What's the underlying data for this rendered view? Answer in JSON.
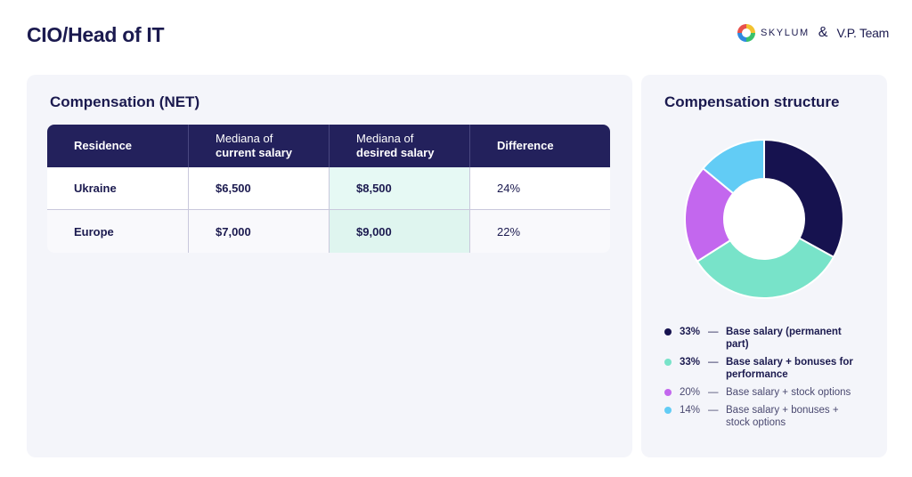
{
  "header": {
    "title": "CIO/Head of IT",
    "brand_skylum": "SKYLUM",
    "ampersand": "&",
    "brand_vp": "V.P. Team"
  },
  "compensation": {
    "heading": "Compensation (NET)",
    "columns": [
      {
        "line1": "Residence",
        "line2": ""
      },
      {
        "line1": "Mediana of",
        "line2": "current salary"
      },
      {
        "line1": "Mediana of",
        "line2": "desired salary"
      },
      {
        "line1": "Difference",
        "line2": ""
      }
    ],
    "rows": [
      {
        "residence": "Ukraine",
        "current": "$6,500",
        "desired": "$8,500",
        "difference": "24%"
      },
      {
        "residence": "Europe",
        "current": "$7,000",
        "desired": "$9,000",
        "difference": "22%"
      }
    ]
  },
  "chart_data": {
    "type": "pie",
    "title": "Compensation structure",
    "donut": true,
    "legend_placement": "bottom",
    "slices": [
      {
        "label": "Base salary (permanent part)",
        "value": 33,
        "pct_label": "33%",
        "color": "#16124f",
        "bold": true
      },
      {
        "label": "Base salary + bonuses for performance",
        "value": 33,
        "pct_label": "33%",
        "color": "#78e3c9",
        "bold": true
      },
      {
        "label": "Base salary + stock options",
        "value": 20,
        "pct_label": "20%",
        "color": "#c367ee",
        "bold": false
      },
      {
        "label": "Base salary + bonuses + stock options",
        "value": 14,
        "pct_label": "14%",
        "color": "#62ccf5",
        "bold": false
      }
    ],
    "legend_dash": "—"
  }
}
